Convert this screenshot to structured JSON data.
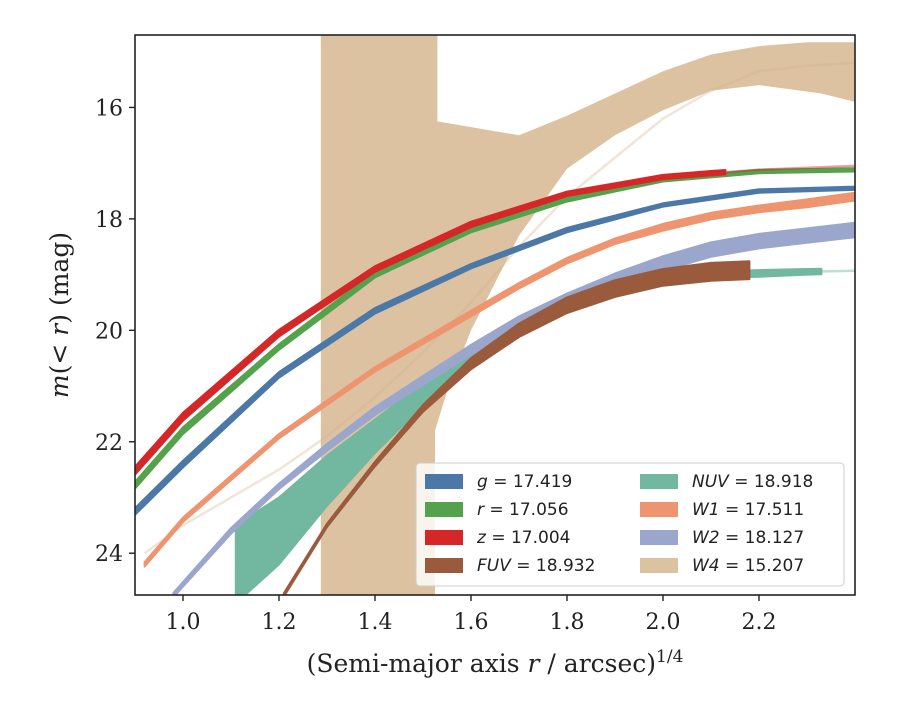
{
  "chart_data": {
    "type": "area",
    "xlabel": "(Semi-major axis r / arcsec)^1/4",
    "ylabel": "m(< r) (mag)",
    "xlim": [
      0.9,
      2.4
    ],
    "ylim": [
      24.75,
      14.7
    ],
    "y_inverted": true,
    "x_ticks": [
      1.0,
      1.2,
      1.4,
      1.6,
      1.8,
      2.0,
      2.2
    ],
    "x_tick_labels": [
      "1.0",
      "1.2",
      "1.4",
      "1.6",
      "1.8",
      "2.0",
      "2.2"
    ],
    "y_ticks": [
      16,
      18,
      20,
      22,
      24
    ],
    "y_tick_labels": [
      "16",
      "18",
      "20",
      "22",
      "24"
    ],
    "legend_position": "lower-right",
    "legend_columns": 2,
    "series": [
      {
        "key": "g",
        "band": "g",
        "value": "17.419",
        "color": "#4C78A8",
        "x": [
          0.9,
          1.0,
          1.2,
          1.4,
          1.6,
          1.8,
          2.0,
          2.2,
          2.4
        ],
        "y": [
          23.25,
          22.4,
          20.8,
          19.65,
          18.85,
          18.2,
          17.75,
          17.5,
          17.45
        ],
        "bw": [
          0.06,
          0.06,
          0.05,
          0.05,
          0.04,
          0.04,
          0.03,
          0.03,
          0.03
        ],
        "xmax_solid": 2.4,
        "faint_to": 2.4,
        "faint_from": 1.6
      },
      {
        "key": "r",
        "band": "r",
        "value": "17.056",
        "color": "#54A24B",
        "x": [
          0.9,
          1.0,
          1.2,
          1.4,
          1.6,
          1.8,
          2.0,
          2.2,
          2.4
        ],
        "y": [
          22.78,
          21.8,
          20.3,
          19.0,
          18.2,
          17.65,
          17.3,
          17.15,
          17.12
        ],
        "bw": [
          0.06,
          0.06,
          0.05,
          0.05,
          0.04,
          0.04,
          0.03,
          0.03,
          0.03
        ],
        "xmax_solid": 2.4,
        "faint_from": 1.6
      },
      {
        "key": "z",
        "band": "z",
        "value": "17.004",
        "color": "#D62728",
        "x": [
          0.9,
          1.0,
          1.2,
          1.4,
          1.6,
          1.8,
          2.0,
          2.1,
          2.2,
          2.4
        ],
        "y": [
          22.52,
          21.55,
          20.05,
          18.9,
          18.1,
          17.55,
          17.25,
          17.18,
          17.12,
          17.05
        ],
        "bw": [
          0.07,
          0.07,
          0.06,
          0.05,
          0.05,
          0.04,
          0.04,
          0.04,
          0.04,
          0.04
        ],
        "xmax_solid": 2.13,
        "faint_from": 1.6
      },
      {
        "key": "FUV",
        "band": "FUV",
        "value": "18.932",
        "color": "#9A5B3C",
        "x": [
          1.21,
          1.3,
          1.4,
          1.5,
          1.6,
          1.7,
          1.8,
          1.9,
          2.0,
          2.1,
          2.18
        ],
        "y": [
          24.75,
          23.5,
          22.4,
          21.4,
          20.6,
          20.0,
          19.55,
          19.25,
          19.05,
          18.95,
          18.92
        ],
        "bw": [
          0.03,
          0.03,
          0.04,
          0.06,
          0.1,
          0.12,
          0.14,
          0.15,
          0.15,
          0.16,
          0.16
        ],
        "xmax_solid": 2.18,
        "faint_from": 1.55
      },
      {
        "key": "NUV",
        "band": "NUV",
        "value": "18.918",
        "color": "#72B7A0",
        "x": [
          1.11,
          1.2,
          1.3,
          1.4,
          1.5,
          1.6,
          1.7,
          1.8,
          1.9,
          2.0,
          2.1,
          2.2,
          2.3,
          2.4
        ],
        "y": [
          24.2,
          23.6,
          22.7,
          21.9,
          21.15,
          20.5,
          19.95,
          19.55,
          19.25,
          19.1,
          19.0,
          18.98,
          18.95,
          18.93
        ],
        "bw": [
          0.7,
          0.6,
          0.45,
          0.3,
          0.2,
          0.15,
          0.12,
          0.1,
          0.08,
          0.07,
          0.06,
          0.06,
          0.05,
          0.05
        ],
        "xmax_solid": 2.33,
        "faint_from": 0.98
      },
      {
        "key": "W1",
        "band": "W1",
        "value": "17.511",
        "color": "#EE946F",
        "x": [
          0.92,
          1.0,
          1.2,
          1.4,
          1.6,
          1.7,
          1.8,
          1.9,
          2.0,
          2.1,
          2.2,
          2.3,
          2.4
        ],
        "y": [
          24.2,
          23.4,
          21.9,
          20.7,
          19.7,
          19.2,
          18.75,
          18.4,
          18.15,
          17.95,
          17.82,
          17.72,
          17.6
        ],
        "bw": [
          0.04,
          0.04,
          0.04,
          0.04,
          0.05,
          0.05,
          0.05,
          0.05,
          0.06,
          0.06,
          0.06,
          0.07,
          0.07
        ],
        "xmax_solid": 2.4,
        "faint_from": 1.65
      },
      {
        "key": "W2",
        "band": "W2",
        "value": "18.127",
        "color": "#9AA6CC",
        "x": [
          0.98,
          1.1,
          1.2,
          1.3,
          1.4,
          1.5,
          1.6,
          1.7,
          1.8,
          1.9,
          2.0,
          2.1,
          2.2,
          2.3,
          2.4
        ],
        "y": [
          24.75,
          23.6,
          22.8,
          22.1,
          21.45,
          20.9,
          20.35,
          19.85,
          19.45,
          19.1,
          18.8,
          18.55,
          18.4,
          18.3,
          18.2
        ],
        "bw": [
          0.04,
          0.05,
          0.05,
          0.06,
          0.07,
          0.08,
          0.09,
          0.1,
          0.11,
          0.12,
          0.13,
          0.13,
          0.13,
          0.13,
          0.13
        ],
        "xmax_solid": 2.4,
        "faint_from": 1.55
      },
      {
        "key": "W4",
        "band": "W4",
        "value": "15.207",
        "color": "#D4B48C",
        "x": [
          0.92,
          1.0,
          1.1,
          1.2,
          1.3,
          1.4,
          1.5,
          1.6,
          1.7,
          1.8,
          1.9,
          2.0,
          2.1,
          2.2,
          2.3,
          2.4
        ],
        "y": [
          24.0,
          23.5,
          23.0,
          22.5,
          21.9,
          21.2,
          20.4,
          19.5,
          18.5,
          17.6,
          16.9,
          16.2,
          15.7,
          15.35,
          15.25,
          15.2
        ],
        "lo": [
          24.0,
          23.5,
          23.0,
          22.5,
          21.9,
          21.2,
          20.4,
          19.5,
          18.5,
          17.6,
          16.9,
          16.2,
          15.7,
          15.35,
          15.25,
          15.2
        ],
        "hi": [
          24.0,
          23.5,
          23.0,
          22.5,
          21.9,
          21.2,
          20.4,
          19.5,
          18.5,
          17.6,
          16.9,
          16.2,
          15.7,
          15.35,
          15.25,
          15.2
        ],
        "region": [
          [
            1.287,
            24.75
          ],
          [
            1.287,
            14.7
          ],
          [
            1.53,
            14.7
          ],
          [
            1.53,
            16.25
          ],
          [
            1.7,
            16.5
          ],
          [
            1.8,
            16.15
          ],
          [
            1.9,
            15.75
          ],
          [
            2.0,
            15.35
          ],
          [
            2.1,
            15.05
          ],
          [
            2.2,
            14.9
          ],
          [
            2.3,
            14.83
          ],
          [
            2.4,
            14.83
          ],
          [
            2.4,
            15.9
          ],
          [
            2.33,
            15.75
          ],
          [
            2.2,
            15.6
          ],
          [
            2.1,
            15.7
          ],
          [
            2.0,
            16.05
          ],
          [
            1.9,
            16.5
          ],
          [
            1.8,
            17.1
          ],
          [
            1.7,
            18.3
          ],
          [
            1.6,
            20.0
          ],
          [
            1.55,
            21.1
          ],
          [
            1.525,
            21.8
          ],
          [
            1.525,
            24.75
          ],
          [
            1.31,
            24.75
          ]
        ],
        "faint_from": 0.92
      }
    ],
    "legend": [
      {
        "key": "g",
        "band": "g",
        "value": "17.419"
      },
      {
        "key": "r",
        "band": "r",
        "value": "17.056"
      },
      {
        "key": "z",
        "band": "z",
        "value": "17.004"
      },
      {
        "key": "FUV",
        "band": "FUV",
        "value": "18.932"
      },
      {
        "key": "NUV",
        "band": "NUV",
        "value": "18.918"
      },
      {
        "key": "W1",
        "band": "W1",
        "value": "17.511"
      },
      {
        "key": "W2",
        "band": "W2",
        "value": "18.127"
      },
      {
        "key": "W4",
        "band": "W4",
        "value": "15.207"
      }
    ]
  }
}
